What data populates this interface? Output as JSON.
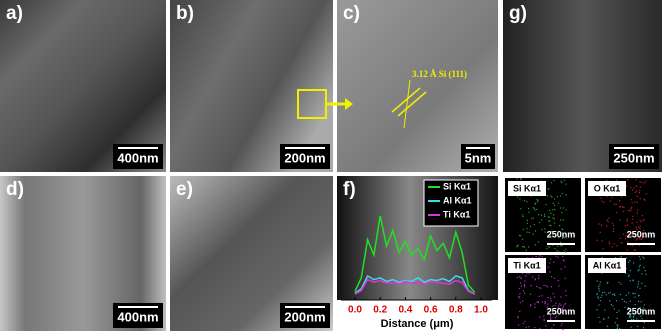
{
  "panels": [
    {
      "label": "a)",
      "scale_bar": "400nm"
    },
    {
      "label": "b)",
      "scale_bar": "200nm"
    },
    {
      "label": "c)",
      "scale_bar": "5nm",
      "annotation": "3.12 Å Si (111)"
    },
    {
      "label": "g)",
      "scale_bar": "250nm"
    },
    {
      "label": "d)",
      "scale_bar": "400nm"
    },
    {
      "label": "e)",
      "scale_bar": "200nm"
    },
    {
      "label": "f)"
    }
  ],
  "line_profile": {
    "type": "line",
    "x_label": "Distance (μm)",
    "xlim": [
      0,
      1
    ],
    "xticks": [
      {
        "value": 0,
        "label": "0.0"
      },
      {
        "value": 0.2,
        "label": "0.2"
      },
      {
        "value": 0.4,
        "label": "0.4"
      },
      {
        "value": 0.6,
        "label": "0.6"
      },
      {
        "value": 0.8,
        "label": "0.8"
      },
      {
        "value": 1,
        "label": "1.0"
      }
    ],
    "x": [
      0,
      0.05,
      0.1,
      0.15,
      0.2,
      0.25,
      0.3,
      0.35,
      0.4,
      0.45,
      0.5,
      0.55,
      0.6,
      0.65,
      0.7,
      0.75,
      0.8,
      0.85,
      0.9,
      0.95
    ],
    "series": [
      {
        "name": "Si Kα1",
        "color": "#22e022",
        "values": [
          5,
          20,
          62,
          45,
          88,
          55,
          72,
          48,
          60,
          45,
          52,
          40,
          66,
          50,
          58,
          42,
          70,
          48,
          12,
          4
        ]
      },
      {
        "name": "Al Kα1",
        "color": "#40d8e8",
        "values": [
          3,
          8,
          22,
          18,
          20,
          16,
          18,
          15,
          17,
          16,
          20,
          15,
          18,
          17,
          19,
          16,
          22,
          20,
          6,
          2
        ]
      },
      {
        "name": "Ti Kα1",
        "color": "#e030e0",
        "values": [
          2,
          6,
          18,
          15,
          17,
          14,
          15,
          13,
          16,
          14,
          15,
          13,
          16,
          15,
          14,
          13,
          17,
          15,
          5,
          2
        ]
      }
    ]
  },
  "maps": [
    {
      "label": "Si Kα1",
      "scale_bar": "250nm",
      "color": "#2a9a2a"
    },
    {
      "label": "O Kα1",
      "scale_bar": "250nm",
      "color": "#c02020"
    },
    {
      "label": "Ti Kα1",
      "scale_bar": "250nm",
      "color": "#b030c0"
    },
    {
      "label": "Al Kα1",
      "scale_bar": "250nm",
      "color": "#20a0a0"
    }
  ]
}
